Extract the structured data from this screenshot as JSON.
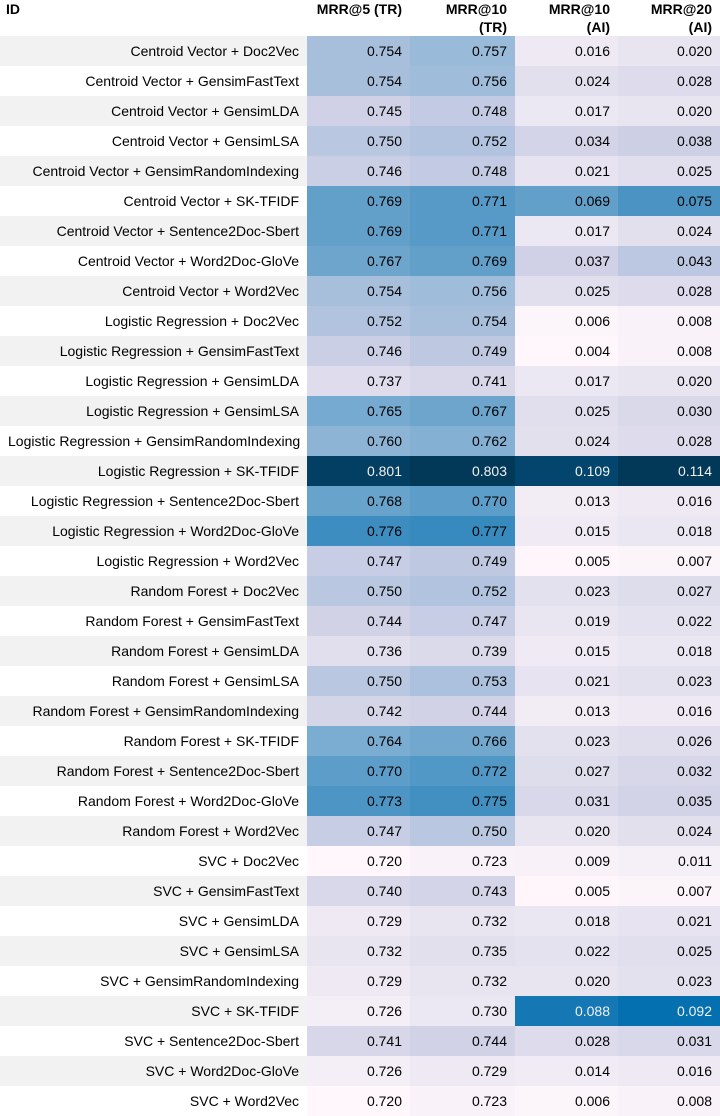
{
  "chart_data": {
    "type": "table",
    "columns": [
      "ID",
      "MRR@5 (TR)",
      "MRR@10 (TR)",
      "MRR@10 (AI)",
      "MRR@20 (AI)"
    ],
    "rows": [
      {
        "id": "Centroid Vector + Doc2Vec",
        "values": [
          0.754,
          0.757,
          0.016,
          0.02
        ]
      },
      {
        "id": "Centroid Vector + GensimFastText",
        "values": [
          0.754,
          0.756,
          0.024,
          0.028
        ]
      },
      {
        "id": "Centroid Vector + GensimLDA",
        "values": [
          0.745,
          0.748,
          0.017,
          0.02
        ]
      },
      {
        "id": "Centroid Vector + GensimLSA",
        "values": [
          0.75,
          0.752,
          0.034,
          0.038
        ]
      },
      {
        "id": "Centroid Vector + GensimRandomIndexing",
        "values": [
          0.746,
          0.748,
          0.021,
          0.025
        ]
      },
      {
        "id": "Centroid Vector + SK-TFIDF",
        "values": [
          0.769,
          0.771,
          0.069,
          0.075
        ]
      },
      {
        "id": "Centroid Vector + Sentence2Doc-Sbert",
        "values": [
          0.769,
          0.771,
          0.017,
          0.024
        ]
      },
      {
        "id": "Centroid Vector + Word2Doc-GloVe",
        "values": [
          0.767,
          0.769,
          0.037,
          0.043
        ]
      },
      {
        "id": "Centroid Vector + Word2Vec",
        "values": [
          0.754,
          0.756,
          0.025,
          0.028
        ]
      },
      {
        "id": "Logistic Regression + Doc2Vec",
        "values": [
          0.752,
          0.754,
          0.006,
          0.008
        ]
      },
      {
        "id": "Logistic Regression + GensimFastText",
        "values": [
          0.746,
          0.749,
          0.004,
          0.008
        ]
      },
      {
        "id": "Logistic Regression + GensimLDA",
        "values": [
          0.737,
          0.741,
          0.017,
          0.02
        ]
      },
      {
        "id": "Logistic Regression + GensimLSA",
        "values": [
          0.765,
          0.767,
          0.025,
          0.03
        ]
      },
      {
        "id": "Logistic Regression + GensimRandomIndexing",
        "values": [
          0.76,
          0.762,
          0.024,
          0.028
        ]
      },
      {
        "id": "Logistic Regression + SK-TFIDF",
        "values": [
          0.801,
          0.803,
          0.109,
          0.114
        ]
      },
      {
        "id": "Logistic Regression + Sentence2Doc-Sbert",
        "values": [
          0.768,
          0.77,
          0.013,
          0.016
        ]
      },
      {
        "id": "Logistic Regression + Word2Doc-GloVe",
        "values": [
          0.776,
          0.777,
          0.015,
          0.018
        ]
      },
      {
        "id": "Logistic Regression + Word2Vec",
        "values": [
          0.747,
          0.749,
          0.005,
          0.007
        ]
      },
      {
        "id": "Random Forest + Doc2Vec",
        "values": [
          0.75,
          0.752,
          0.023,
          0.027
        ]
      },
      {
        "id": "Random Forest + GensimFastText",
        "values": [
          0.744,
          0.747,
          0.019,
          0.022
        ]
      },
      {
        "id": "Random Forest + GensimLDA",
        "values": [
          0.736,
          0.739,
          0.015,
          0.018
        ]
      },
      {
        "id": "Random Forest + GensimLSA",
        "values": [
          0.75,
          0.753,
          0.021,
          0.023
        ]
      },
      {
        "id": "Random Forest + GensimRandomIndexing",
        "values": [
          0.742,
          0.744,
          0.013,
          0.016
        ]
      },
      {
        "id": "Random Forest + SK-TFIDF",
        "values": [
          0.764,
          0.766,
          0.023,
          0.026
        ]
      },
      {
        "id": "Random Forest + Sentence2Doc-Sbert",
        "values": [
          0.77,
          0.772,
          0.027,
          0.032
        ]
      },
      {
        "id": "Random Forest + Word2Doc-GloVe",
        "values": [
          0.773,
          0.775,
          0.031,
          0.035
        ]
      },
      {
        "id": "Random Forest + Word2Vec",
        "values": [
          0.747,
          0.75,
          0.02,
          0.024
        ]
      },
      {
        "id": "SVC + Doc2Vec",
        "values": [
          0.72,
          0.723,
          0.009,
          0.011
        ]
      },
      {
        "id": "SVC + GensimFastText",
        "values": [
          0.74,
          0.743,
          0.005,
          0.007
        ]
      },
      {
        "id": "SVC + GensimLDA",
        "values": [
          0.729,
          0.732,
          0.018,
          0.021
        ]
      },
      {
        "id": "SVC + GensimLSA",
        "values": [
          0.732,
          0.735,
          0.022,
          0.025
        ]
      },
      {
        "id": "SVC + GensimRandomIndexing",
        "values": [
          0.729,
          0.732,
          0.02,
          0.023
        ]
      },
      {
        "id": "SVC + SK-TFIDF",
        "values": [
          0.726,
          0.73,
          0.088,
          0.092
        ]
      },
      {
        "id": "SVC + Sentence2Doc-Sbert",
        "values": [
          0.741,
          0.744,
          0.028,
          0.031
        ]
      },
      {
        "id": "SVC + Word2Doc-GloVe",
        "values": [
          0.726,
          0.729,
          0.014,
          0.016
        ]
      },
      {
        "id": "SVC + Word2Vec",
        "values": [
          0.72,
          0.723,
          0.006,
          0.008
        ]
      }
    ],
    "color_groups": [
      [
        0,
        1
      ],
      [
        2,
        3
      ]
    ],
    "colormap": "PuBu",
    "colors": {
      "low": "#fff7fb",
      "mid_low": "#d0d1e6",
      "mid": "#74a9cf",
      "mid_high": "#0570b0",
      "high": "#023858",
      "light_text": "#f1f1f1",
      "dark_text": "#000000"
    }
  }
}
